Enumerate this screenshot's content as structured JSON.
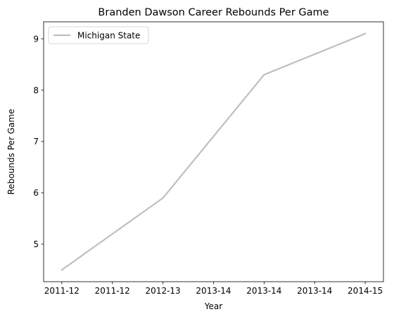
{
  "chart_data": {
    "type": "line",
    "title": "Branden Dawson Career Rebounds Per Game",
    "xlabel": "Year",
    "ylabel": "Rebounds Per Game",
    "x_ticks": [
      "2011-12",
      "2011-12",
      "2012-13",
      "2013-14",
      "2013-14",
      "2013-14",
      "2014-15"
    ],
    "x_tick_positions": [
      0,
      0.5,
      1,
      1.5,
      2,
      2.5,
      3
    ],
    "xlim": [
      -0.18,
      3.18
    ],
    "ylim": [
      4.27,
      9.33
    ],
    "y_ticks": [
      5,
      6,
      7,
      8,
      9
    ],
    "grid": false,
    "legend": "upper-left",
    "series": [
      {
        "name": "Michigan State",
        "color": "#bfbfbf",
        "x": [
          0,
          1,
          2,
          3
        ],
        "categories": [
          "2011-12",
          "2012-13",
          "2013-14",
          "2014-15"
        ],
        "values": [
          4.5,
          5.9,
          8.3,
          9.1
        ]
      }
    ]
  }
}
